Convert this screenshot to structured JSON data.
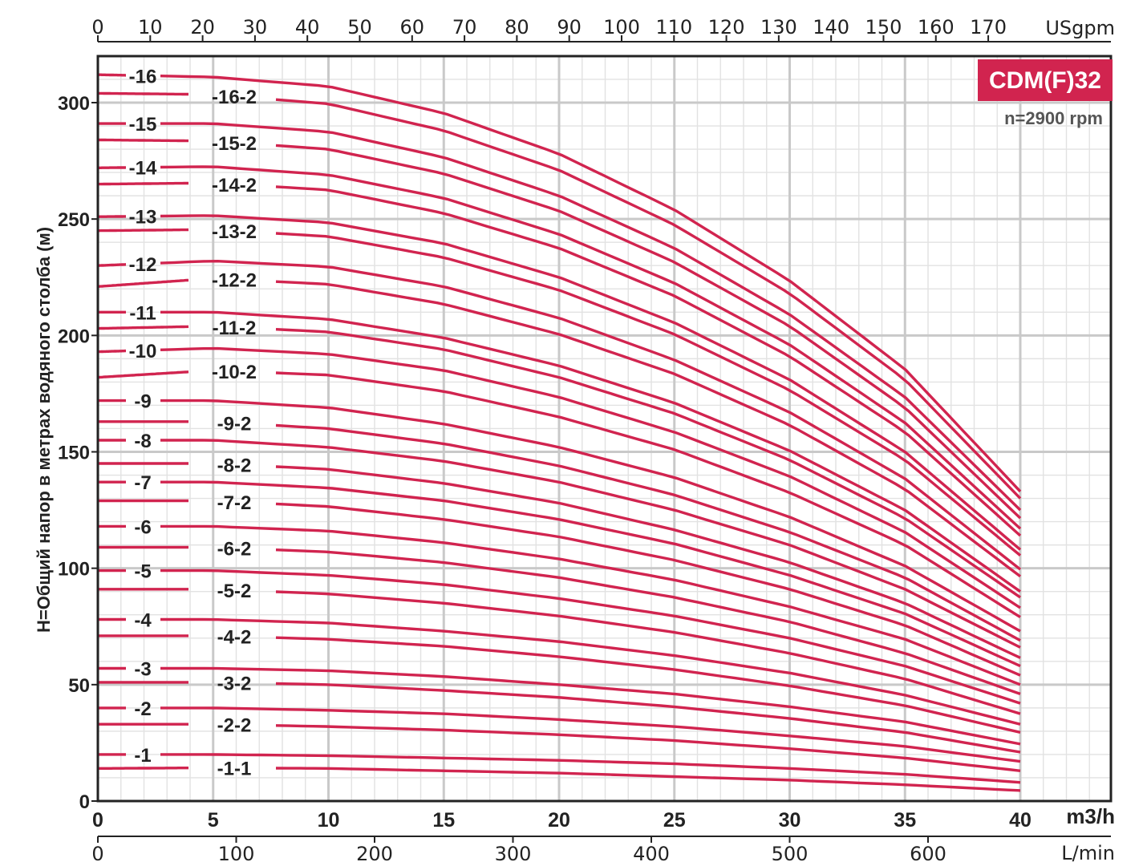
{
  "chart_data": {
    "type": "line",
    "title": "",
    "badge": "CDM(F)32",
    "speed": "n=2900 rpm",
    "ylabel": "H=Общий напор в метрах водяного столба (м)",
    "xlabel": "m3/h",
    "ylim": [
      0,
      320
    ],
    "xlim": [
      0,
      40
    ],
    "grid": true,
    "legend": "none",
    "curve_color": "#d1244f",
    "badge_color": "#d1244f",
    "x_axis_primary": {
      "unit": "m3/h",
      "ticks": [
        0,
        5,
        10,
        15,
        20,
        25,
        30,
        35,
        40
      ]
    },
    "x_axis_top": {
      "unit": "USgpm",
      "ticks": [
        0,
        10,
        20,
        30,
        40,
        50,
        60,
        70,
        80,
        90,
        100,
        110,
        120,
        130,
        140,
        150,
        160,
        170
      ],
      "factor_per_m3h": 4.4029
    },
    "x_axis_bottom": {
      "unit": "L/min",
      "ticks": [
        0,
        100,
        200,
        300,
        400,
        500,
        600
      ],
      "factor_per_m3h": 16.667
    },
    "y_ticks": [
      0,
      50,
      100,
      150,
      200,
      250,
      300
    ],
    "series": [
      {
        "name": "-1-1",
        "points": [
          [
            0,
            14
          ],
          [
            5,
            14.3
          ],
          [
            10,
            14
          ],
          [
            15,
            13
          ],
          [
            20,
            12
          ],
          [
            25,
            10.5
          ],
          [
            30,
            9
          ],
          [
            35,
            7
          ],
          [
            40,
            4.5
          ]
        ]
      },
      {
        "name": "-1",
        "points": [
          [
            0,
            20
          ],
          [
            5,
            20
          ],
          [
            10,
            19.5
          ],
          [
            15,
            18.5
          ],
          [
            20,
            17.5
          ],
          [
            25,
            16
          ],
          [
            30,
            14
          ],
          [
            35,
            11.5
          ],
          [
            40,
            8
          ]
        ]
      },
      {
        "name": "-2-2",
        "points": [
          [
            0,
            33
          ],
          [
            5,
            33
          ],
          [
            10,
            32
          ],
          [
            15,
            30.5
          ],
          [
            20,
            28.5
          ],
          [
            25,
            26
          ],
          [
            30,
            22.5
          ],
          [
            35,
            18.5
          ],
          [
            40,
            13
          ]
        ]
      },
      {
        "name": "-2",
        "points": [
          [
            0,
            40
          ],
          [
            5,
            40
          ],
          [
            10,
            39
          ],
          [
            15,
            37.5
          ],
          [
            20,
            35
          ],
          [
            25,
            32
          ],
          [
            30,
            28
          ],
          [
            35,
            23.5
          ],
          [
            40,
            17
          ]
        ]
      },
      {
        "name": "-3-2",
        "points": [
          [
            0,
            51
          ],
          [
            5,
            51
          ],
          [
            10,
            50
          ],
          [
            15,
            47.5
          ],
          [
            20,
            44.5
          ],
          [
            25,
            40.5
          ],
          [
            30,
            35.5
          ],
          [
            35,
            29.5
          ],
          [
            40,
            21
          ]
        ]
      },
      {
        "name": "-3",
        "points": [
          [
            0,
            57
          ],
          [
            5,
            57
          ],
          [
            10,
            56
          ],
          [
            15,
            53.5
          ],
          [
            20,
            50
          ],
          [
            25,
            46
          ],
          [
            30,
            40.5
          ],
          [
            35,
            34
          ],
          [
            40,
            24.5
          ]
        ]
      },
      {
        "name": "-4-2",
        "points": [
          [
            0,
            71
          ],
          [
            5,
            71
          ],
          [
            10,
            69.5
          ],
          [
            15,
            66.5
          ],
          [
            20,
            62
          ],
          [
            25,
            56.5
          ],
          [
            30,
            49.5
          ],
          [
            35,
            41
          ],
          [
            40,
            29.5
          ]
        ]
      },
      {
        "name": "-4",
        "points": [
          [
            0,
            78
          ],
          [
            5,
            78
          ],
          [
            10,
            76.5
          ],
          [
            15,
            73
          ],
          [
            20,
            68.5
          ],
          [
            25,
            62.5
          ],
          [
            30,
            55
          ],
          [
            35,
            45.5
          ],
          [
            40,
            33
          ]
        ]
      },
      {
        "name": "-5-2",
        "points": [
          [
            0,
            91
          ],
          [
            5,
            91
          ],
          [
            10,
            89
          ],
          [
            15,
            85
          ],
          [
            20,
            79.5
          ],
          [
            25,
            72.5
          ],
          [
            30,
            63.5
          ],
          [
            35,
            52.5
          ],
          [
            40,
            37.5
          ]
        ]
      },
      {
        "name": "-5",
        "points": [
          [
            0,
            99
          ],
          [
            5,
            99
          ],
          [
            10,
            97
          ],
          [
            15,
            93
          ],
          [
            20,
            87
          ],
          [
            25,
            79.5
          ],
          [
            30,
            70
          ],
          [
            35,
            58
          ],
          [
            40,
            42
          ]
        ]
      },
      {
        "name": "-6-2",
        "points": [
          [
            0,
            109
          ],
          [
            5,
            109
          ],
          [
            10,
            107
          ],
          [
            15,
            102.5
          ],
          [
            20,
            96
          ],
          [
            25,
            87.5
          ],
          [
            30,
            77
          ],
          [
            35,
            63.5
          ],
          [
            40,
            46
          ]
        ]
      },
      {
        "name": "-6",
        "points": [
          [
            0,
            118
          ],
          [
            5,
            118
          ],
          [
            10,
            116
          ],
          [
            15,
            111
          ],
          [
            20,
            104
          ],
          [
            25,
            95
          ],
          [
            30,
            83.5
          ],
          [
            35,
            69.5
          ],
          [
            40,
            50
          ]
        ]
      },
      {
        "name": "-7-2",
        "points": [
          [
            0,
            129
          ],
          [
            5,
            129
          ],
          [
            10,
            126.5
          ],
          [
            15,
            121
          ],
          [
            20,
            113.5
          ],
          [
            25,
            103.5
          ],
          [
            30,
            91
          ],
          [
            35,
            75.5
          ],
          [
            40,
            54
          ]
        ]
      },
      {
        "name": "-7",
        "points": [
          [
            0,
            137
          ],
          [
            5,
            137
          ],
          [
            10,
            134.5
          ],
          [
            15,
            129
          ],
          [
            20,
            121
          ],
          [
            25,
            110.5
          ],
          [
            30,
            97
          ],
          [
            35,
            80.5
          ],
          [
            40,
            58
          ]
        ]
      },
      {
        "name": "-8-2",
        "points": [
          [
            0,
            145
          ],
          [
            5,
            145
          ],
          [
            10,
            142.5
          ],
          [
            15,
            136.5
          ],
          [
            20,
            128
          ],
          [
            25,
            116.5
          ],
          [
            30,
            102.5
          ],
          [
            35,
            85
          ],
          [
            40,
            61.5
          ]
        ]
      },
      {
        "name": "-8",
        "points": [
          [
            0,
            155
          ],
          [
            5,
            155
          ],
          [
            10,
            152
          ],
          [
            15,
            146
          ],
          [
            20,
            137
          ],
          [
            25,
            125
          ],
          [
            30,
            110
          ],
          [
            35,
            91
          ],
          [
            40,
            66
          ]
        ]
      },
      {
        "name": "-9-2",
        "points": [
          [
            0,
            163
          ],
          [
            5,
            163
          ],
          [
            10,
            160
          ],
          [
            15,
            153.5
          ],
          [
            20,
            144
          ],
          [
            25,
            131.5
          ],
          [
            30,
            115.5
          ],
          [
            35,
            96
          ],
          [
            40,
            69
          ]
        ]
      },
      {
        "name": "-9",
        "points": [
          [
            0,
            172
          ],
          [
            5,
            172
          ],
          [
            10,
            169
          ],
          [
            15,
            162
          ],
          [
            20,
            152
          ],
          [
            25,
            139
          ],
          [
            30,
            122
          ],
          [
            35,
            101
          ],
          [
            40,
            73
          ]
        ]
      },
      {
        "name": "-10-2",
        "points": [
          [
            0,
            182
          ],
          [
            5,
            185
          ],
          [
            10,
            183
          ],
          [
            15,
            176
          ],
          [
            20,
            165
          ],
          [
            25,
            151
          ],
          [
            30,
            132.5
          ],
          [
            35,
            110
          ],
          [
            40,
            79
          ]
        ]
      },
      {
        "name": "-10",
        "points": [
          [
            0,
            193
          ],
          [
            5,
            194.5
          ],
          [
            10,
            192
          ],
          [
            15,
            185
          ],
          [
            20,
            173.5
          ],
          [
            25,
            158.5
          ],
          [
            30,
            139.5
          ],
          [
            35,
            115.5
          ],
          [
            40,
            83
          ]
        ]
      },
      {
        "name": "-11-2",
        "points": [
          [
            0,
            203
          ],
          [
            5,
            204
          ],
          [
            10,
            201.5
          ],
          [
            15,
            194
          ],
          [
            20,
            182
          ],
          [
            25,
            166.5
          ],
          [
            30,
            146.5
          ],
          [
            35,
            121.5
          ],
          [
            40,
            87.5
          ]
        ]
      },
      {
        "name": "-11",
        "points": [
          [
            0,
            210
          ],
          [
            5,
            210
          ],
          [
            10,
            207
          ],
          [
            15,
            199
          ],
          [
            20,
            187
          ],
          [
            25,
            171
          ],
          [
            30,
            150.5
          ],
          [
            35,
            125
          ],
          [
            40,
            90
          ]
        ]
      },
      {
        "name": "-12-2",
        "points": [
          [
            0,
            221
          ],
          [
            5,
            224.5
          ],
          [
            10,
            222
          ],
          [
            15,
            213.5
          ],
          [
            20,
            200.5
          ],
          [
            25,
            183.5
          ],
          [
            30,
            161.5
          ],
          [
            35,
            134
          ],
          [
            40,
            96.5
          ]
        ]
      },
      {
        "name": "-12",
        "points": [
          [
            0,
            230
          ],
          [
            5,
            232
          ],
          [
            10,
            229.5
          ],
          [
            15,
            221
          ],
          [
            20,
            207.5
          ],
          [
            25,
            189.5
          ],
          [
            30,
            167
          ],
          [
            35,
            138.5
          ],
          [
            40,
            99.5
          ]
        ]
      },
      {
        "name": "-13-2",
        "points": [
          [
            0,
            245
          ],
          [
            5,
            245.5
          ],
          [
            10,
            242.5
          ],
          [
            15,
            233.5
          ],
          [
            20,
            219.5
          ],
          [
            25,
            200.5
          ],
          [
            30,
            176.5
          ],
          [
            35,
            146.5
          ],
          [
            40,
            105.5
          ]
        ]
      },
      {
        "name": "-13",
        "points": [
          [
            0,
            251
          ],
          [
            5,
            251.5
          ],
          [
            10,
            248.5
          ],
          [
            15,
            239.5
          ],
          [
            20,
            225
          ],
          [
            25,
            205.5
          ],
          [
            30,
            181
          ],
          [
            35,
            150
          ],
          [
            40,
            108
          ]
        ]
      },
      {
        "name": "-14-2",
        "points": [
          [
            0,
            265
          ],
          [
            5,
            265.5
          ],
          [
            10,
            262.5
          ],
          [
            15,
            252.5
          ],
          [
            20,
            237.5
          ],
          [
            25,
            217
          ],
          [
            30,
            191
          ],
          [
            35,
            158.5
          ],
          [
            40,
            114
          ]
        ]
      },
      {
        "name": "-14",
        "points": [
          [
            0,
            272
          ],
          [
            5,
            272.5
          ],
          [
            10,
            269
          ],
          [
            15,
            259
          ],
          [
            20,
            243.5
          ],
          [
            25,
            222.5
          ],
          [
            30,
            196
          ],
          [
            35,
            162.5
          ],
          [
            40,
            117
          ]
        ]
      },
      {
        "name": "-15-2",
        "points": [
          [
            0,
            284
          ],
          [
            5,
            283.5
          ],
          [
            10,
            280
          ],
          [
            15,
            269.5
          ],
          [
            20,
            253.5
          ],
          [
            25,
            231.5
          ],
          [
            30,
            204
          ],
          [
            35,
            169
          ],
          [
            40,
            121.5
          ]
        ]
      },
      {
        "name": "-15",
        "points": [
          [
            0,
            291
          ],
          [
            5,
            291
          ],
          [
            10,
            287.5
          ],
          [
            15,
            276.5
          ],
          [
            20,
            260
          ],
          [
            25,
            237.5
          ],
          [
            30,
            209
          ],
          [
            35,
            173.5
          ],
          [
            40,
            125
          ]
        ]
      },
      {
        "name": "-16-2",
        "points": [
          [
            0,
            304
          ],
          [
            5,
            303.5
          ],
          [
            10,
            299.5
          ],
          [
            15,
            288
          ],
          [
            20,
            271
          ],
          [
            25,
            247.5
          ],
          [
            30,
            218
          ],
          [
            35,
            181
          ],
          [
            40,
            130
          ]
        ]
      },
      {
        "name": "-16",
        "points": [
          [
            0,
            312
          ],
          [
            5,
            311
          ],
          [
            10,
            307
          ],
          [
            15,
            295.5
          ],
          [
            20,
            278
          ],
          [
            25,
            254
          ],
          [
            30,
            223.5
          ],
          [
            35,
            185.5
          ],
          [
            40,
            133
          ]
        ]
      }
    ]
  }
}
